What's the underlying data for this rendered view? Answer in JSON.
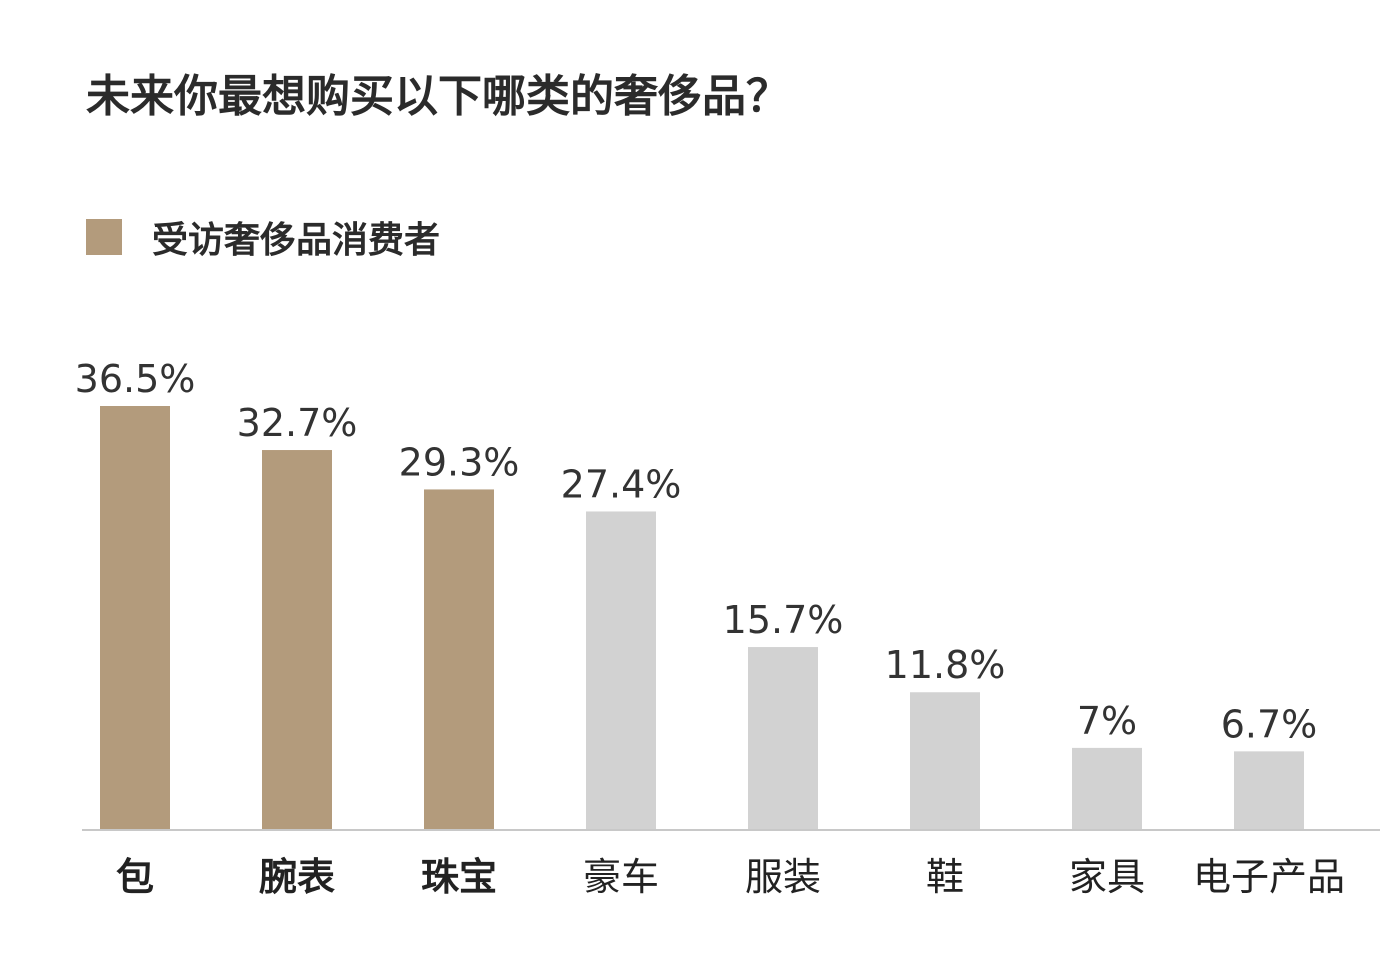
{
  "chart_data": {
    "type": "bar",
    "title": "未来你最想购买以下哪类的奢侈品？",
    "legend": {
      "entries": [
        "受访奢侈品消费者"
      ],
      "placement": "top-left"
    },
    "categories": [
      "包",
      "腕表",
      "珠宝",
      "豪车",
      "服装",
      "鞋",
      "家具",
      "电子产品"
    ],
    "series": [
      {
        "name": "受访奢侈品消费者",
        "values": [
          36.5,
          32.7,
          29.3,
          27.4,
          15.7,
          11.8,
          7,
          6.7
        ],
        "value_labels": [
          "36.5%",
          "32.7%",
          "29.3%",
          "27.4%",
          "15.7%",
          "11.8%",
          "7%",
          "6.7%"
        ]
      }
    ],
    "highlighted_count": 3,
    "ylim": [
      0,
      36.5
    ],
    "grid": false,
    "xlabel": "",
    "ylabel": ""
  },
  "colors": {
    "highlight": "#b39b7c",
    "muted": "#d2d2d2",
    "baseline": "#c8c8c8"
  }
}
